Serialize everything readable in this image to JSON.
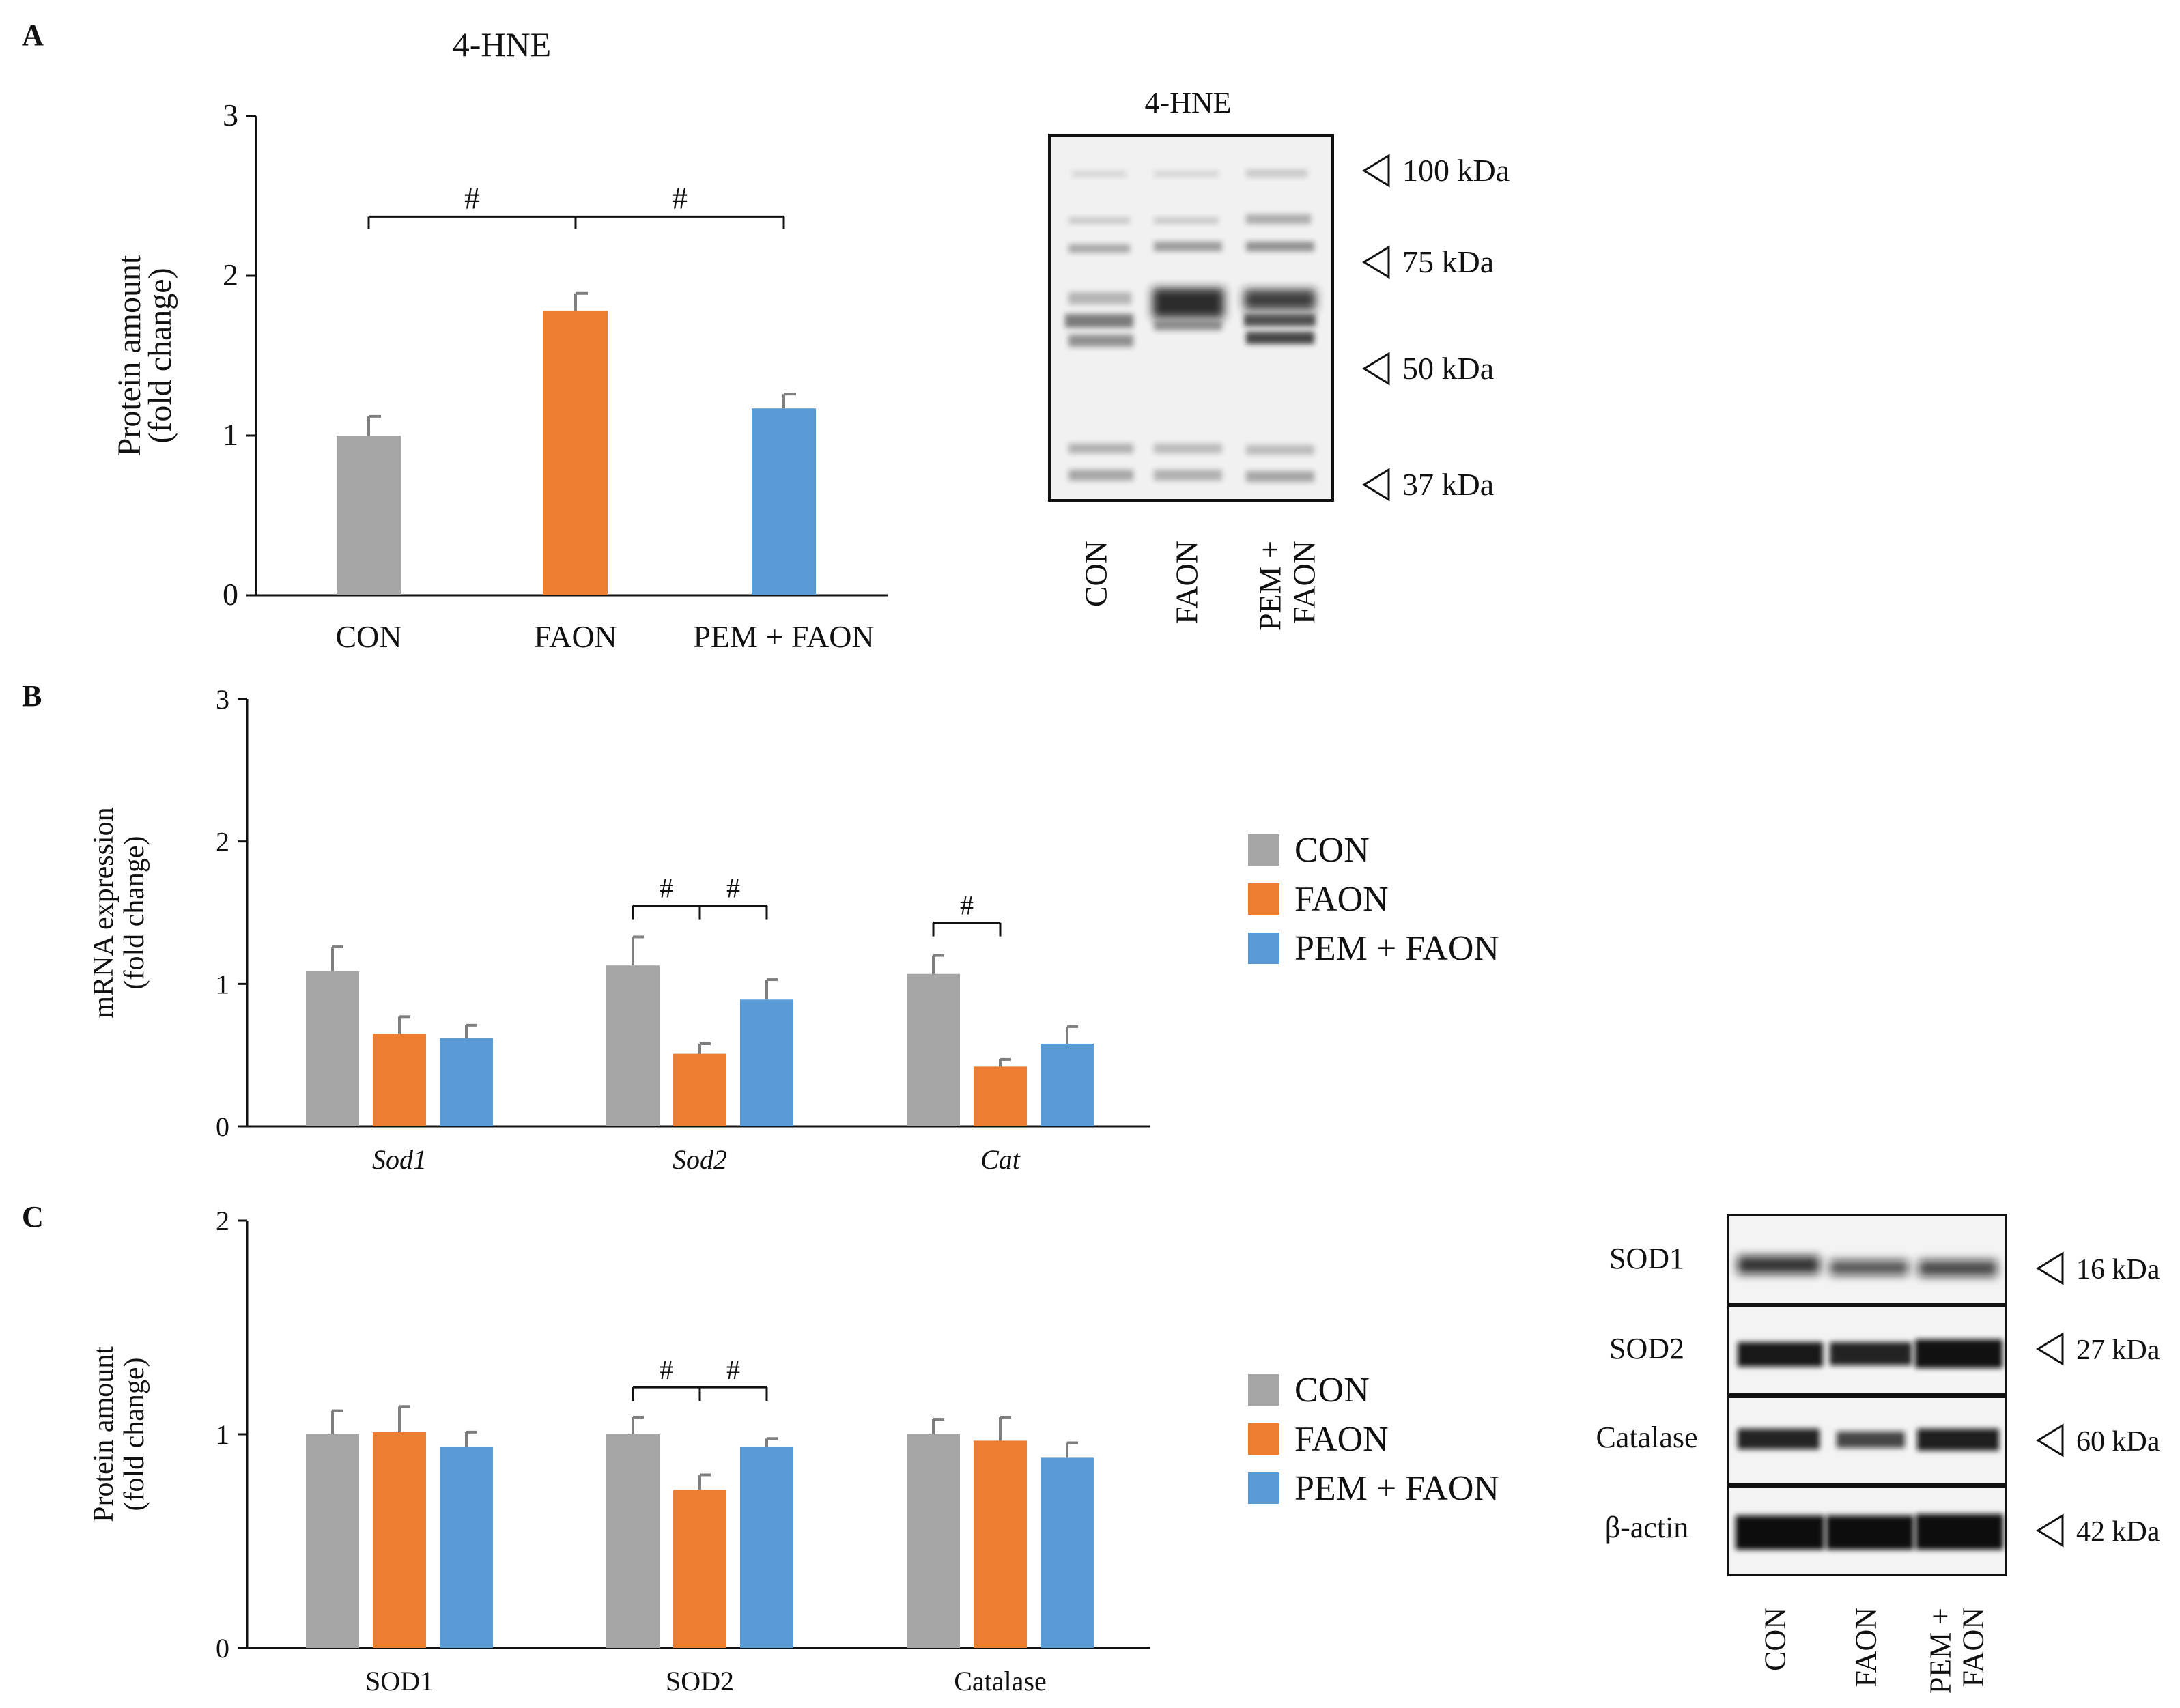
{
  "colors": {
    "CON": "#a5a5a5",
    "FAON": "#ed7d31",
    "PEM + FAON": "#5b9bd5",
    "axis": "#111111"
  },
  "panels": {
    "A": {
      "letter": "A",
      "blot_title": "4-HNE",
      "markers": [
        "100 kDa",
        "75 kDa",
        "50 kDa",
        "37 kDa"
      ],
      "lanes": [
        "CON",
        "FAON",
        "PEM +|FAON"
      ]
    },
    "B": {
      "letter": "B"
    },
    "C": {
      "letter": "C",
      "blot_rows": [
        "SOD1",
        "SOD2",
        "Catalase",
        "β-actin"
      ],
      "markers": [
        "16 kDa",
        "27 kDa",
        "60 kDa",
        "42 kDa"
      ],
      "lanes": [
        "CON",
        "FAON",
        "PEM +|FAON"
      ]
    }
  },
  "chart_data": [
    {
      "panel": "A",
      "type": "bar",
      "title": "4-HNE",
      "ylabel": "Protein amount|(fold change)",
      "ylim": [
        0,
        3
      ],
      "yticks": [
        0,
        1,
        2,
        3
      ],
      "categories": [
        "CON",
        "FAON",
        "PEM + FAON"
      ],
      "values": [
        1.0,
        1.78,
        1.17
      ],
      "errors": [
        0.12,
        0.11,
        0.09
      ],
      "significance": [
        {
          "from": 0,
          "to": 1,
          "label": "#"
        },
        {
          "from": 1,
          "to": 2,
          "label": "#"
        }
      ]
    },
    {
      "panel": "B",
      "type": "bar",
      "ylabel": "mRNA expression|(fold change)",
      "ylim": [
        0,
        3
      ],
      "yticks": [
        0,
        1,
        2,
        3
      ],
      "categories": [
        "Sod1",
        "Sod2",
        "Cat"
      ],
      "italic_categories": true,
      "series": [
        {
          "name": "CON",
          "values": [
            1.09,
            1.13,
            1.07
          ],
          "errors": [
            0.17,
            0.2,
            0.13
          ]
        },
        {
          "name": "FAON",
          "values": [
            0.65,
            0.51,
            0.42
          ],
          "errors": [
            0.12,
            0.07,
            0.05
          ]
        },
        {
          "name": "PEM + FAON",
          "values": [
            0.62,
            0.89,
            0.58
          ],
          "errors": [
            0.09,
            0.14,
            0.12
          ]
        }
      ],
      "significance": [
        {
          "category": 1,
          "from": 0,
          "to": 1,
          "label": "#"
        },
        {
          "category": 1,
          "from": 1,
          "to": 2,
          "label": "#"
        },
        {
          "category": 2,
          "from": 0,
          "to": 1,
          "label": "#"
        }
      ],
      "legend": "right"
    },
    {
      "panel": "C",
      "type": "bar",
      "ylabel": "Protein amount|(fold change)",
      "ylim": [
        0,
        2
      ],
      "yticks": [
        0,
        1,
        2
      ],
      "categories": [
        "SOD1",
        "SOD2",
        "Catalase"
      ],
      "italic_categories": false,
      "series": [
        {
          "name": "CON",
          "values": [
            1.0,
            1.0,
            1.0
          ],
          "errors": [
            0.11,
            0.08,
            0.07
          ]
        },
        {
          "name": "FAON",
          "values": [
            1.01,
            0.74,
            0.97
          ],
          "errors": [
            0.12,
            0.07,
            0.11
          ]
        },
        {
          "name": "PEM + FAON",
          "values": [
            0.94,
            0.94,
            0.89
          ],
          "errors": [
            0.07,
            0.04,
            0.07
          ]
        }
      ],
      "significance": [
        {
          "category": 1,
          "from": 0,
          "to": 1,
          "label": "#"
        },
        {
          "category": 1,
          "from": 1,
          "to": 2,
          "label": "#"
        }
      ],
      "legend": "right"
    }
  ]
}
